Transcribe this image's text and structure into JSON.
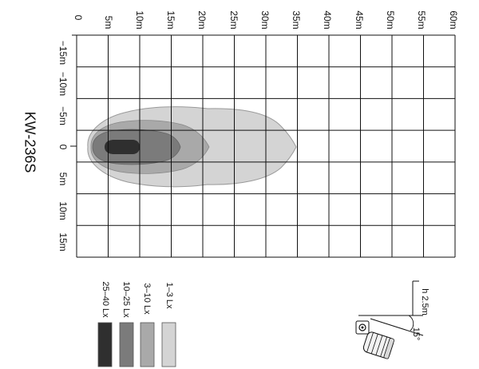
{
  "model": "KW-236S",
  "distance_axis": {
    "labels": [
      "0",
      "5m",
      "10m",
      "15m",
      "20m",
      "25m",
      "30m",
      "35m",
      "40m",
      "45m",
      "50m",
      "55m",
      "60m"
    ]
  },
  "width_axis": {
    "labels": [
      "−15m",
      "−10m",
      "−5m",
      "0",
      "5m",
      "10m",
      "15m"
    ]
  },
  "zones": [
    {
      "label": "1–3 Lx",
      "color": "#d4d4d4"
    },
    {
      "label": "3–10 Lx",
      "color": "#a9a9a9"
    },
    {
      "label": "10–25 Lx",
      "color": "#7b7b7b"
    },
    {
      "label": "25–40 Lx",
      "color": "#2f2f2f"
    }
  ],
  "mounting": {
    "height": "h 2.5m",
    "tilt": "15°"
  }
}
